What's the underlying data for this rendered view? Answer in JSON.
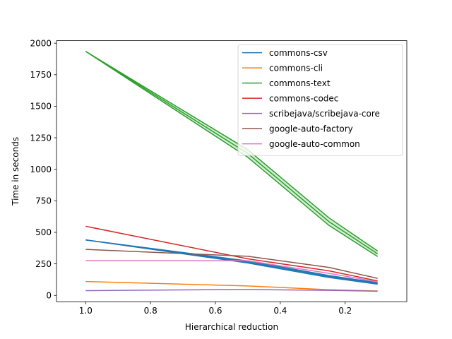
{
  "chart_data": {
    "type": "line",
    "title": "",
    "xlabel": "Hierarchical reduction",
    "ylabel": "Time in seconds",
    "x_inverted": true,
    "xlim": [
      1.09,
      0.01
    ],
    "ylim": [
      -50,
      2020
    ],
    "xticks": [
      1.0,
      0.8,
      0.6,
      0.4,
      0.2
    ],
    "xtick_labels": [
      "1.0",
      "0.8",
      "0.6",
      "0.4",
      "0.2"
    ],
    "yticks": [
      0,
      250,
      500,
      750,
      1000,
      1250,
      1500,
      1750,
      2000
    ],
    "ytick_labels": [
      "0",
      "250",
      "500",
      "750",
      "1000",
      "1250",
      "1500",
      "1750",
      "2000"
    ],
    "grid": false,
    "legend_position": "top-right",
    "x": [
      1.0,
      0.5,
      0.25,
      0.1
    ],
    "series": [
      {
        "name": "commons-csv",
        "color": "#1f77b4",
        "values": [
          440,
          265,
          150,
          95
        ],
        "spread": [
          0,
          8,
          8,
          6
        ]
      },
      {
        "name": "commons-cli",
        "color": "#ff7f0e",
        "values": [
          110,
          75,
          45,
          35
        ],
        "spread": [
          0,
          0,
          0,
          0
        ]
      },
      {
        "name": "commons-text",
        "color": "#2ca02c",
        "values": [
          1935,
          1125,
          585,
          330
        ],
        "spread": [
          0,
          30,
          30,
          22
        ]
      },
      {
        "name": "commons-codec",
        "color": "#d62728",
        "values": [
          548,
          290,
          195,
          115
        ],
        "spread": [
          0,
          0,
          0,
          0
        ]
      },
      {
        "name": "scribejava/scribejava-core",
        "color": "#9467bd",
        "values": [
          38,
          47,
          40,
          33
        ],
        "spread": [
          0,
          0,
          0,
          0
        ]
      },
      {
        "name": "google-auto-factory",
        "color": "#8c564b",
        "values": [
          365,
          310,
          222,
          135
        ],
        "spread": [
          0,
          0,
          0,
          0
        ]
      },
      {
        "name": "google-auto-common",
        "color": "#e377c2",
        "values": [
          275,
          275,
          175,
          108
        ],
        "spread": [
          0,
          0,
          0,
          0
        ]
      }
    ]
  }
}
